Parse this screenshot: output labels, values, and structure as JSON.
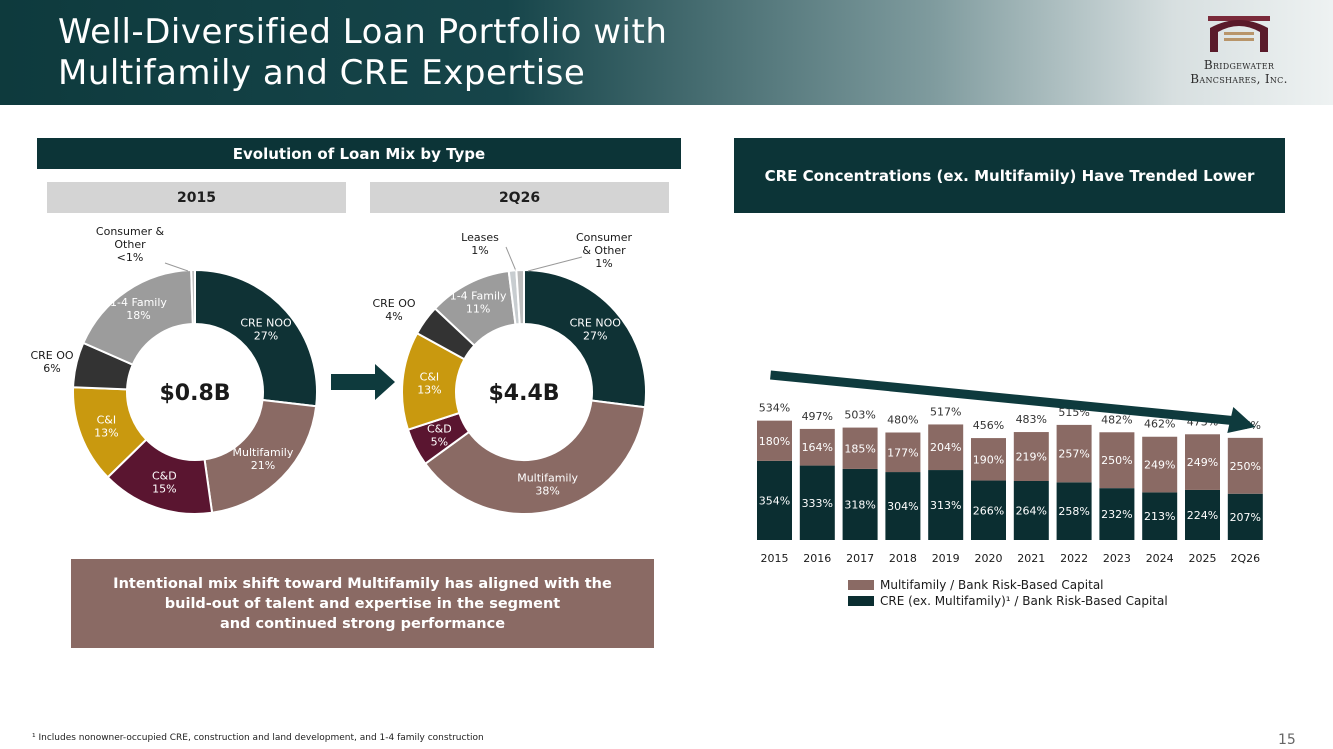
{
  "page": {
    "title_line1": "Well-Diversified Loan Portfolio with",
    "title_line2": "Multifamily and CRE Expertise",
    "logo_line1": "Bridgewater",
    "logo_line2": "Bancshares, Inc.",
    "left_banner": "Evolution of Loan Mix by Type",
    "right_banner": "CRE Concentrations (ex. Multifamily) Have Trended Lower",
    "callout_lines": [
      "Intentional mix shift toward Multifamily has aligned with the",
      "build-out of talent and expertise in the segment",
      "and continued strong performance"
    ],
    "footnote": "¹ Includes nonowner-occupied CRE, construction and land development, and 1-4 family construction",
    "page_number": "15",
    "colors": {
      "header_dark": "#0e3a3d",
      "banner": "#0c3437",
      "cre_noo": "#0f3235",
      "multifamily": "#8a6a64",
      "cnd": "#5a1530",
      "cni": "#c9990f",
      "cre_oo": "#333333",
      "one_four_family": "#9c9c9c",
      "consumer_other": "#bdbdbd",
      "leases": "#c8cdd0",
      "arrow": "#0e3a3d"
    }
  },
  "chart_data": [
    {
      "type": "pie",
      "variant": "donut",
      "period": "2015",
      "center_label": "$0.8B",
      "slices": [
        {
          "name": "CRE NOO",
          "label": "27%",
          "value": 27,
          "color": "#0f3235"
        },
        {
          "name": "Multifamily",
          "label": "21%",
          "value": 21,
          "color": "#8a6a64"
        },
        {
          "name": "C&D",
          "label": "15%",
          "value": 15,
          "color": "#5a1530"
        },
        {
          "name": "C&I",
          "label": "13%",
          "value": 13,
          "color": "#c9990f"
        },
        {
          "name": "CRE OO",
          "label": "6%",
          "value": 6,
          "color": "#333333"
        },
        {
          "name": "1-4 Family",
          "label": "18%",
          "value": 18,
          "color": "#9c9c9c"
        },
        {
          "name": "Consumer &\nOther",
          "label": "<1%",
          "value": 0.5,
          "color": "#bdbdbd"
        }
      ]
    },
    {
      "type": "pie",
      "variant": "donut",
      "period": "2Q26",
      "center_label": "$4.4B",
      "slices": [
        {
          "name": "CRE NOO",
          "label": "27%",
          "value": 27,
          "color": "#0f3235"
        },
        {
          "name": "Multifamily",
          "label": "38%",
          "value": 38,
          "color": "#8a6a64"
        },
        {
          "name": "C&D",
          "label": "5%",
          "value": 5,
          "color": "#5a1530"
        },
        {
          "name": "C&I",
          "label": "13%",
          "value": 13,
          "color": "#c9990f"
        },
        {
          "name": "CRE OO",
          "label": "4%",
          "value": 4,
          "color": "#333333"
        },
        {
          "name": "1-4 Family",
          "label": "11%",
          "value": 11,
          "color": "#9c9c9c"
        },
        {
          "name": "Leases",
          "label": "1%",
          "value": 1,
          "color": "#c8cdd0"
        },
        {
          "name": "Consumer\n& Other",
          "label": "1%",
          "value": 1,
          "color": "#bdbdbd"
        }
      ]
    },
    {
      "type": "bar",
      "stacked": true,
      "categories": [
        "2015",
        "2016",
        "2017",
        "2018",
        "2019",
        "2020",
        "2021",
        "2022",
        "2023",
        "2024",
        "2025",
        "2Q26"
      ],
      "series": [
        {
          "name": "CRE (ex. Multifamily)¹ / Bank Risk-Based Capital",
          "color": "#0b2e31",
          "values": [
            354,
            333,
            318,
            304,
            313,
            266,
            264,
            258,
            232,
            213,
            224,
            207
          ]
        },
        {
          "name": "Multifamily / Bank Risk-Based Capital",
          "color": "#8a6a64",
          "values": [
            180,
            164,
            185,
            177,
            204,
            190,
            219,
            257,
            250,
            249,
            249,
            250
          ]
        }
      ],
      "totals": [
        534,
        497,
        503,
        480,
        517,
        456,
        483,
        515,
        482,
        462,
        473,
        457
      ],
      "value_suffix": "%",
      "ylim": [
        0,
        560
      ],
      "trend": "downward arrow across bars",
      "legend_position": "bottom",
      "grid": false
    }
  ]
}
